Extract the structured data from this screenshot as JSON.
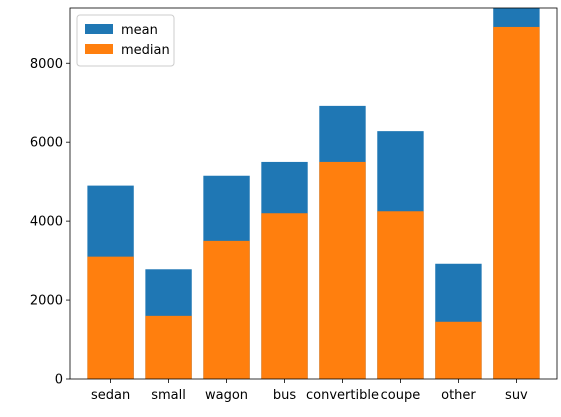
{
  "chart_data": {
    "type": "bar",
    "title": "",
    "xlabel": "",
    "ylabel": "",
    "categories": [
      "sedan",
      "small",
      "wagon",
      "bus",
      "convertible",
      "coupe",
      "other",
      "suv"
    ],
    "series": [
      {
        "name": "mean",
        "color": "#1f77b4",
        "values": [
          4900,
          2780,
          5150,
          5500,
          6920,
          6280,
          2920,
          9400
        ]
      },
      {
        "name": "median",
        "color": "#ff7f0e",
        "values": [
          3100,
          1600,
          3500,
          4200,
          5500,
          4250,
          1450,
          8920
        ]
      }
    ],
    "ylim": [
      0,
      9400
    ],
    "yticks": [
      0,
      2000,
      4000,
      6000,
      8000
    ],
    "grid": false,
    "legend_position": "upper-left"
  }
}
